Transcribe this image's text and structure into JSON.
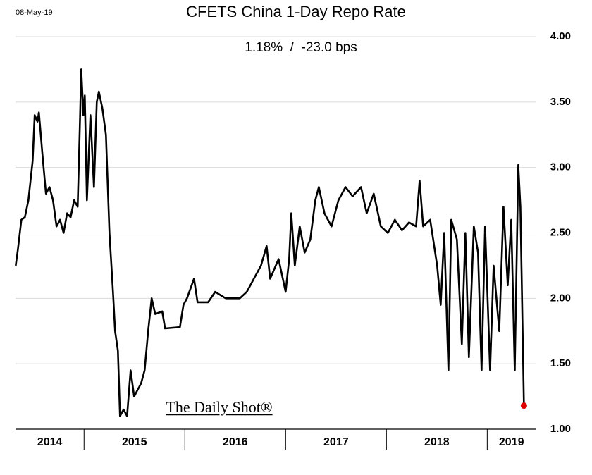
{
  "chart_data": {
    "type": "line",
    "date_stamp": "08-May-19",
    "title": "CFETS China 1-Day Repo Rate",
    "subtitle": "1.18%  /  -23.0 bps",
    "watermark": "The Daily Shot®",
    "color": "#000000",
    "end_marker_color": "#e00000",
    "grid": true,
    "xlim": [
      2014.32,
      2019.48
    ],
    "ylim": [
      1.0,
      4.0
    ],
    "yticks": [
      {
        "value": 1.0,
        "label": "1.00"
      },
      {
        "value": 1.5,
        "label": "1.50"
      },
      {
        "value": 2.0,
        "label": "2.00"
      },
      {
        "value": 2.5,
        "label": "2.50"
      },
      {
        "value": 3.0,
        "label": "3.00"
      },
      {
        "value": 3.5,
        "label": "3.50"
      },
      {
        "value": 4.0,
        "label": "4.00"
      }
    ],
    "xticks": [
      {
        "value": 2014.66,
        "label": "2014"
      },
      {
        "value": 2015.5,
        "label": "2015"
      },
      {
        "value": 2016.5,
        "label": "2016"
      },
      {
        "value": 2017.5,
        "label": "2017"
      },
      {
        "value": 2018.5,
        "label": "2018"
      },
      {
        "value": 2019.24,
        "label": "2019"
      }
    ],
    "year_boundaries": [
      2015,
      2016,
      2017,
      2018,
      2019
    ],
    "x": [
      2014.322,
      2014.343,
      2014.378,
      2014.413,
      2014.448,
      2014.49,
      2014.51,
      2014.538,
      2014.552,
      2014.587,
      2014.622,
      2014.657,
      2014.692,
      2014.727,
      2014.762,
      2014.797,
      2014.832,
      2014.867,
      2014.902,
      2014.937,
      2014.958,
      2014.972,
      2014.993,
      2015.007,
      2015.028,
      2015.063,
      2015.098,
      2015.126,
      2015.147,
      2015.182,
      2015.217,
      2015.252,
      2015.287,
      2015.308,
      2015.336,
      2015.357,
      2015.392,
      2015.427,
      2015.462,
      2015.497,
      2015.531,
      2015.566,
      2015.601,
      2015.636,
      2015.65,
      2015.671,
      2015.706,
      2015.776,
      2015.804,
      2015.951,
      2015.986,
      2016.021,
      2016.091,
      2016.126,
      2016.231,
      2016.301,
      2016.406,
      2016.545,
      2016.615,
      2016.685,
      2016.755,
      2016.811,
      2016.846,
      2016.93,
      2017.0,
      2017.035,
      2017.056,
      2017.091,
      2017.14,
      2017.189,
      2017.245,
      2017.294,
      2017.329,
      2017.385,
      2017.455,
      2017.524,
      2017.594,
      2017.664,
      2017.748,
      2017.804,
      2017.874,
      2017.944,
      2018.014,
      2018.084,
      2018.154,
      2018.224,
      2018.294,
      2018.329,
      2018.364,
      2018.434,
      2018.503,
      2018.538,
      2018.573,
      2018.615,
      2018.643,
      2018.699,
      2018.748,
      2018.783,
      2018.818,
      2018.867,
      2018.909,
      2018.944,
      2018.979,
      2019.028,
      2019.063,
      2019.119,
      2019.161,
      2019.203,
      2019.238,
      2019.273,
      2019.308,
      2019.329,
      2019.343,
      2019.364
    ],
    "values": [
      2.25,
      2.37,
      2.6,
      2.62,
      2.75,
      3.05,
      3.4,
      3.35,
      3.42,
      3.1,
      2.8,
      2.85,
      2.75,
      2.55,
      2.6,
      2.5,
      2.65,
      2.62,
      2.75,
      2.7,
      3.3,
      3.75,
      3.4,
      3.55,
      2.75,
      3.4,
      2.85,
      3.5,
      3.58,
      3.45,
      3.25,
      2.5,
      2.05,
      1.75,
      1.6,
      1.1,
      1.15,
      1.1,
      1.45,
      1.25,
      1.3,
      1.35,
      1.45,
      1.75,
      1.85,
      2.0,
      1.88,
      1.9,
      1.77,
      1.78,
      1.95,
      2.0,
      2.15,
      1.97,
      1.97,
      2.05,
      2.0,
      2.0,
      2.05,
      2.15,
      2.25,
      2.4,
      2.15,
      2.3,
      2.05,
      2.3,
      2.65,
      2.25,
      2.55,
      2.35,
      2.45,
      2.75,
      2.85,
      2.65,
      2.55,
      2.75,
      2.85,
      2.78,
      2.85,
      2.65,
      2.8,
      2.55,
      2.5,
      2.6,
      2.52,
      2.58,
      2.55,
      2.9,
      2.55,
      2.6,
      2.25,
      1.95,
      2.5,
      1.45,
      2.6,
      2.45,
      1.65,
      2.5,
      1.55,
      2.55,
      2.35,
      1.45,
      2.55,
      1.45,
      2.25,
      1.75,
      2.7,
      2.1,
      2.6,
      1.45,
      3.02,
      2.7,
      2.1,
      1.18
    ]
  }
}
